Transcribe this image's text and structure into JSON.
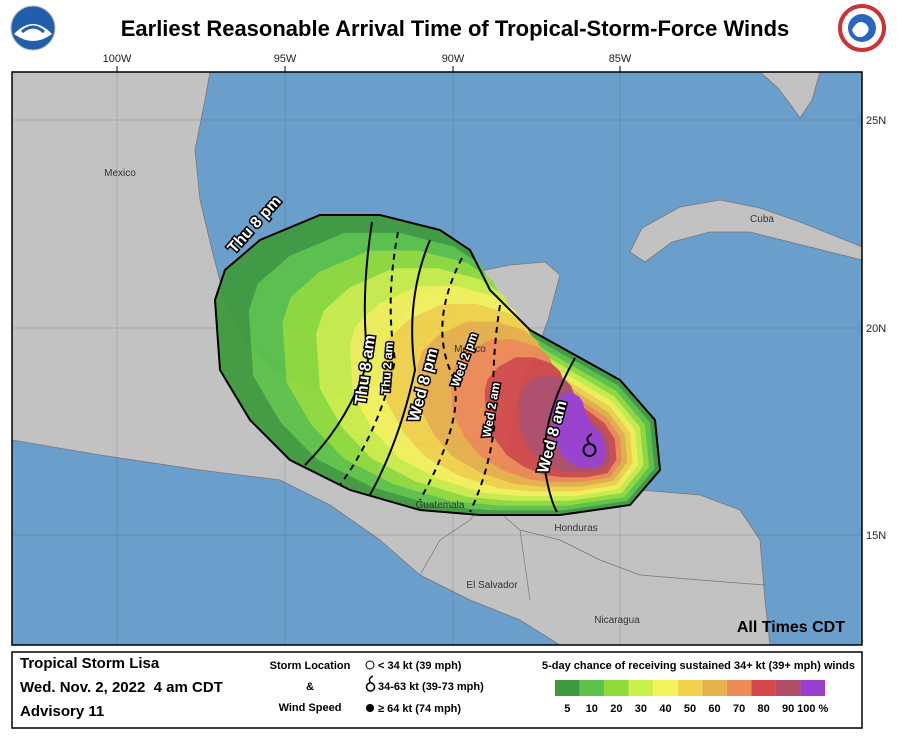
{
  "header": {
    "title": "Earliest Reasonable Arrival Time of Tropical-Storm-Force Winds"
  },
  "map": {
    "lon_labels": [
      "100W",
      "95W",
      "90W",
      "85W"
    ],
    "lat_labels": [
      "25N",
      "20N",
      "15N"
    ],
    "places": [
      "Mexico",
      "Cuba",
      "Mexico",
      "Guatemala",
      "Honduras",
      "El Salvador",
      "Nicaragua"
    ],
    "arrival_times": [
      "Thu 8 pm",
      "Thu 8 am",
      "Thu 2 am",
      "Wed 8 pm",
      "Wed 2 pm",
      "Wed 2 am",
      "Wed 8 am"
    ],
    "time_zone_note": "All Times CDT"
  },
  "footer": {
    "storm_name": "Tropical Storm Lisa",
    "issued": "Wed. Nov. 2, 2022  4 am CDT",
    "advisory": "Advisory 11",
    "key_title": [
      "Storm Location",
      "&",
      "Wind Speed"
    ],
    "key_items": [
      "< 34 kt (39 mph)",
      "34-63 kt (39-73 mph)",
      "≥ 64 kt (74 mph)"
    ],
    "legend": {
      "title": "5-day chance of receiving sustained 34+ kt (39+ mph) winds",
      "colors": [
        "#3f9a3f",
        "#5cc24a",
        "#8fdb3c",
        "#c9ef4a",
        "#f2f25a",
        "#f1d24a",
        "#e6b04a",
        "#ee8a55",
        "#d44a4a",
        "#b24d6a",
        "#9c3fcf"
      ],
      "labels": [
        5,
        10,
        20,
        30,
        40,
        50,
        60,
        70,
        80,
        90,
        {
          "value": 100,
          "label": "100 %"
        }
      ]
    }
  }
}
